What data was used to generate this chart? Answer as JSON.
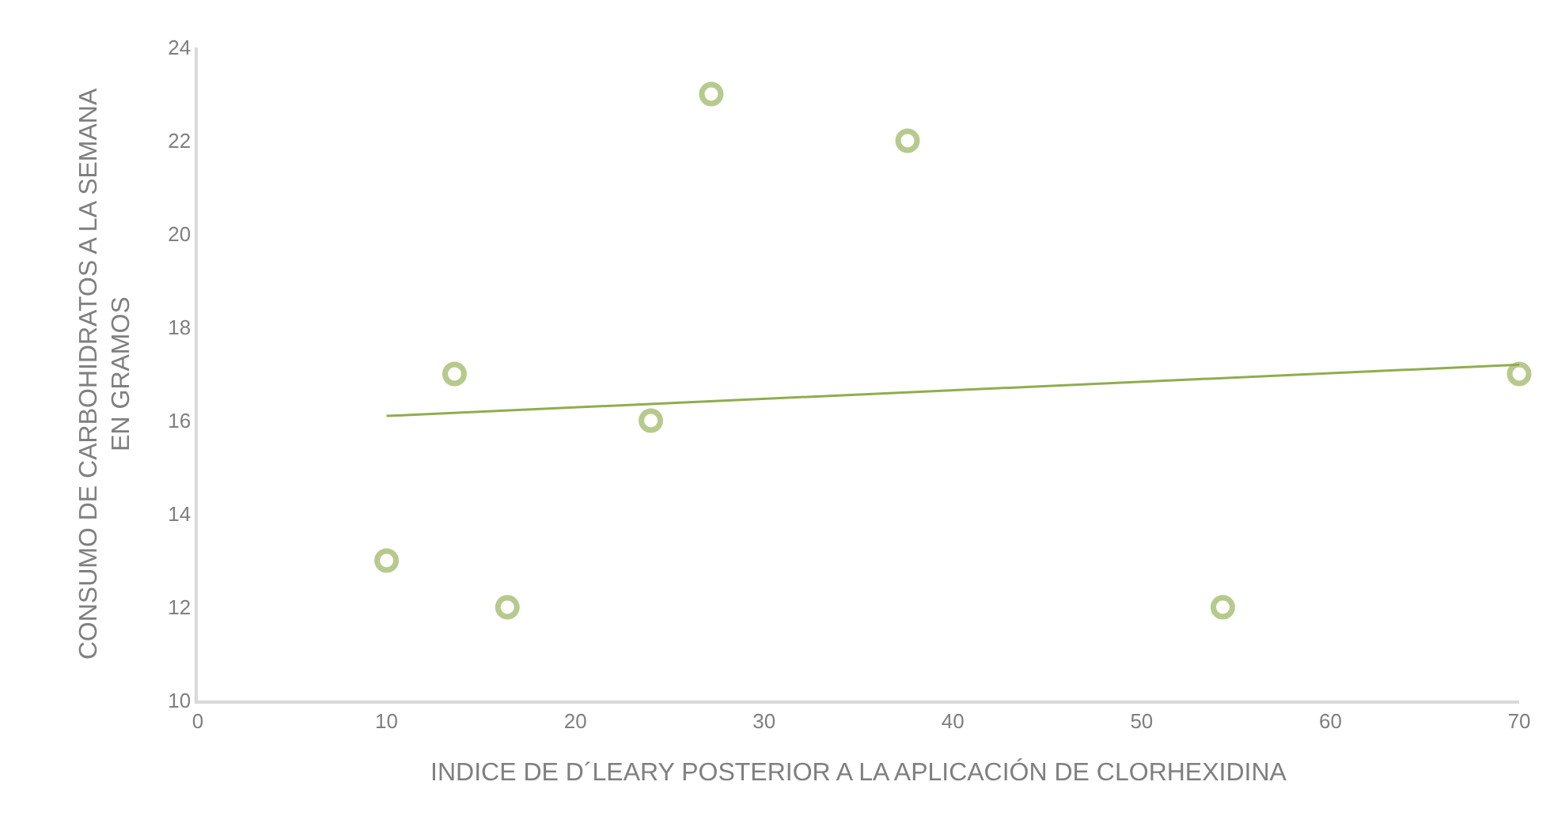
{
  "chart_data": {
    "type": "scatter",
    "xlabel": "INDICE DE D´LEARY POSTERIOR A LA APLICACIÓN DE CLORHEXIDINA",
    "ylabel": "CONSUMO DE CARBOHIDRATOS A LA SEMANA EN GRAMOS",
    "xlim": [
      0,
      70
    ],
    "xticks": [
      0,
      10,
      20,
      30,
      40,
      50,
      60,
      70
    ],
    "ylim": [
      10,
      24
    ],
    "yticks": [
      10,
      12,
      14,
      16,
      18,
      20,
      22,
      24
    ],
    "grid": false,
    "series": [
      {
        "marker": "circle",
        "color": "#b8c98e",
        "x": [
          10,
          13.6,
          16.4,
          24,
          27.2,
          37.6,
          54.3,
          70
        ],
        "values": [
          13,
          17,
          12,
          16,
          23,
          22,
          12,
          17
        ]
      },
      {
        "type": "line",
        "color": "#8fad4f",
        "line_style": "solid",
        "x": [
          10,
          70
        ],
        "values": [
          16.1,
          17.2
        ]
      }
    ]
  }
}
